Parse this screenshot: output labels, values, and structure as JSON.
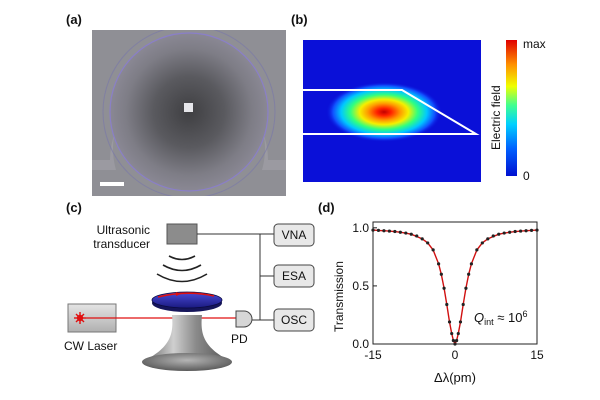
{
  "panels": {
    "a": {
      "label": "(a)"
    },
    "b": {
      "label": "(b)",
      "colorbar": {
        "title": "Electric field",
        "max_label": "max",
        "min_label": "0"
      }
    },
    "c": {
      "label": "(c)",
      "transducer_label_line1": "Ultrasonic",
      "transducer_label_line2": "transducer",
      "laser_label": "CW Laser",
      "pd_label": "PD",
      "boxes": {
        "vna": "VNA",
        "esa": "ESA",
        "osc": "OSC"
      }
    },
    "d": {
      "label": "(d)"
    }
  },
  "chart_data": {
    "type": "line",
    "title": "",
    "xlabel": "Δλ(pm)",
    "ylabel": "Transmission",
    "xlim": [
      -15,
      15
    ],
    "ylim": [
      0,
      1.05
    ],
    "xticks": [
      -15,
      0,
      15
    ],
    "yticks": [
      0.0,
      0.5,
      1.0
    ],
    "xtick_labels": [
      "-15",
      "0",
      "15"
    ],
    "ytick_labels": [
      "0.0",
      "0.5",
      "1.0"
    ],
    "annotation": {
      "prefix": "Q",
      "subscript": "int",
      "text": " ≈ 10",
      "superscript": "6"
    },
    "series": [
      {
        "style": "points",
        "x": [
          -15,
          -14,
          -13,
          -12,
          -11,
          -10,
          -9,
          -8,
          -7,
          -6,
          -5,
          -4,
          -3,
          -2.5,
          -2,
          -1.5,
          -1,
          -0.6,
          -0.3,
          0,
          0.3,
          0.6,
          1,
          1.5,
          2,
          2.5,
          3,
          4,
          5,
          6,
          7,
          8,
          9,
          10,
          11,
          12,
          13,
          14,
          15
        ],
        "y": [
          0.98,
          0.978,
          0.975,
          0.972,
          0.968,
          0.962,
          0.955,
          0.945,
          0.93,
          0.905,
          0.87,
          0.81,
          0.69,
          0.6,
          0.48,
          0.34,
          0.19,
          0.09,
          0.03,
          0.0,
          0.03,
          0.09,
          0.19,
          0.34,
          0.48,
          0.6,
          0.69,
          0.81,
          0.87,
          0.905,
          0.93,
          0.945,
          0.955,
          0.962,
          0.968,
          0.972,
          0.975,
          0.978,
          0.98
        ],
        "color": "#222222"
      },
      {
        "style": "fit",
        "x": [
          -15,
          -12,
          -10,
          -8,
          -6,
          -5,
          -4,
          -3,
          -2.5,
          -2,
          -1.5,
          -1,
          -0.6,
          -0.3,
          0,
          0.3,
          0.6,
          1,
          1.5,
          2,
          2.5,
          3,
          4,
          5,
          6,
          8,
          10,
          12,
          15
        ],
        "y": [
          0.98,
          0.972,
          0.962,
          0.945,
          0.905,
          0.87,
          0.81,
          0.69,
          0.6,
          0.48,
          0.34,
          0.19,
          0.09,
          0.03,
          0.0,
          0.03,
          0.09,
          0.19,
          0.34,
          0.48,
          0.6,
          0.69,
          0.81,
          0.87,
          0.905,
          0.945,
          0.962,
          0.972,
          0.98
        ],
        "color": "#d01010"
      }
    ]
  },
  "colors": {
    "accent": "#d01010",
    "micro_bg": "#8f8f95",
    "field_bg": "#0a10d8"
  }
}
